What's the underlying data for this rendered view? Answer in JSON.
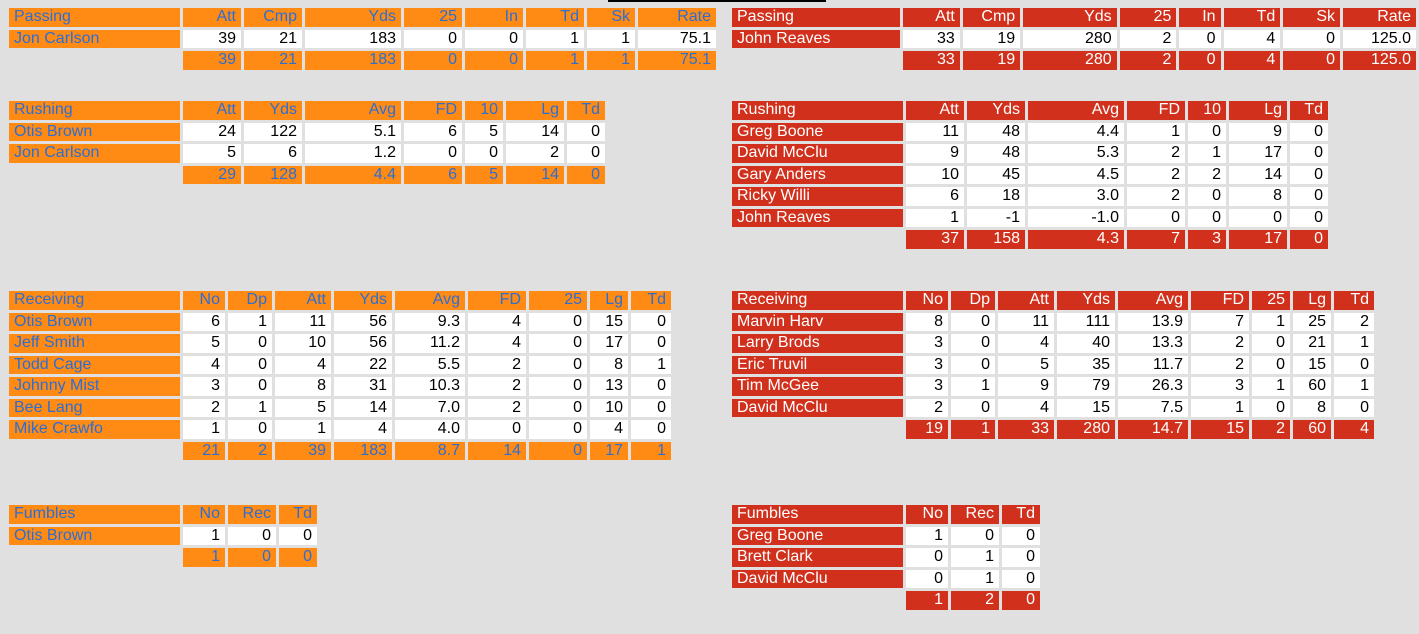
{
  "home": {
    "passing": {
      "title": "Passing",
      "headers": [
        "Att",
        "Cmp",
        "Yds",
        "25",
        "In",
        "Td",
        "Sk",
        "Rate"
      ],
      "rows": [
        {
          "name": "Jon Carlson",
          "values": [
            "39",
            "21",
            "183",
            "0",
            "0",
            "1",
            "1",
            "75.1"
          ]
        }
      ],
      "totals": [
        "39",
        "21",
        "183",
        "0",
        "0",
        "1",
        "1",
        "75.1"
      ]
    },
    "rushing": {
      "title": "Rushing",
      "headers": [
        "Att",
        "Yds",
        "Avg",
        "FD",
        "10",
        "Lg",
        "Td"
      ],
      "rows": [
        {
          "name": "Otis Brown",
          "values": [
            "24",
            "122",
            "5.1",
            "6",
            "5",
            "14",
            "0"
          ]
        },
        {
          "name": "Jon Carlson",
          "values": [
            "5",
            "6",
            "1.2",
            "0",
            "0",
            "2",
            "0"
          ]
        }
      ],
      "totals": [
        "29",
        "128",
        "4.4",
        "6",
        "5",
        "14",
        "0"
      ]
    },
    "receiving": {
      "title": "Receiving",
      "headers": [
        "No",
        "Dp",
        "Att",
        "Yds",
        "Avg",
        "FD",
        "25",
        "Lg",
        "Td"
      ],
      "rows": [
        {
          "name": "Otis Brown",
          "values": [
            "6",
            "1",
            "11",
            "56",
            "9.3",
            "4",
            "0",
            "15",
            "0"
          ]
        },
        {
          "name": "Jeff Smith",
          "values": [
            "5",
            "0",
            "10",
            "56",
            "11.2",
            "4",
            "0",
            "17",
            "0"
          ]
        },
        {
          "name": "Todd Cage",
          "values": [
            "4",
            "0",
            "4",
            "22",
            "5.5",
            "2",
            "0",
            "8",
            "1"
          ]
        },
        {
          "name": "Johnny Mist",
          "values": [
            "3",
            "0",
            "8",
            "31",
            "10.3",
            "2",
            "0",
            "13",
            "0"
          ]
        },
        {
          "name": "Bee Lang",
          "values": [
            "2",
            "1",
            "5",
            "14",
            "7.0",
            "2",
            "0",
            "10",
            "0"
          ]
        },
        {
          "name": "Mike Crawfo",
          "values": [
            "1",
            "0",
            "1",
            "4",
            "4.0",
            "0",
            "0",
            "4",
            "0"
          ]
        }
      ],
      "totals": [
        "21",
        "2",
        "39",
        "183",
        "8.7",
        "14",
        "0",
        "17",
        "1"
      ]
    },
    "fumbles": {
      "title": "Fumbles",
      "headers": [
        "No",
        "Rec",
        "Td"
      ],
      "rows": [
        {
          "name": "Otis Brown",
          "values": [
            "1",
            "0",
            "0"
          ]
        }
      ],
      "totals": [
        "1",
        "0",
        "0"
      ]
    }
  },
  "away": {
    "passing": {
      "title": "Passing",
      "headers": [
        "Att",
        "Cmp",
        "Yds",
        "25",
        "In",
        "Td",
        "Sk",
        "Rate"
      ],
      "rows": [
        {
          "name": "John Reaves",
          "values": [
            "33",
            "19",
            "280",
            "2",
            "0",
            "4",
            "0",
            "125.0"
          ]
        }
      ],
      "totals": [
        "33",
        "19",
        "280",
        "2",
        "0",
        "4",
        "0",
        "125.0"
      ]
    },
    "rushing": {
      "title": "Rushing",
      "headers": [
        "Att",
        "Yds",
        "Avg",
        "FD",
        "10",
        "Lg",
        "Td"
      ],
      "rows": [
        {
          "name": "Greg Boone",
          "values": [
            "11",
            "48",
            "4.4",
            "1",
            "0",
            "9",
            "0"
          ]
        },
        {
          "name": "David McClu",
          "values": [
            "9",
            "48",
            "5.3",
            "2",
            "1",
            "17",
            "0"
          ]
        },
        {
          "name": "Gary Anders",
          "values": [
            "10",
            "45",
            "4.5",
            "2",
            "2",
            "14",
            "0"
          ]
        },
        {
          "name": "Ricky Willi",
          "values": [
            "6",
            "18",
            "3.0",
            "2",
            "0",
            "8",
            "0"
          ]
        },
        {
          "name": "John Reaves",
          "values": [
            "1",
            "-1",
            "-1.0",
            "0",
            "0",
            "0",
            "0"
          ]
        }
      ],
      "totals": [
        "37",
        "158",
        "4.3",
        "7",
        "3",
        "17",
        "0"
      ]
    },
    "receiving": {
      "title": "Receiving",
      "headers": [
        "No",
        "Dp",
        "Att",
        "Yds",
        "Avg",
        "FD",
        "25",
        "Lg",
        "Td"
      ],
      "rows": [
        {
          "name": "Marvin Harv",
          "values": [
            "8",
            "0",
            "11",
            "111",
            "13.9",
            "7",
            "1",
            "25",
            "2"
          ]
        },
        {
          "name": "Larry Brods",
          "values": [
            "3",
            "0",
            "4",
            "40",
            "13.3",
            "2",
            "0",
            "21",
            "1"
          ]
        },
        {
          "name": "Eric Truvil",
          "values": [
            "3",
            "0",
            "5",
            "35",
            "11.7",
            "2",
            "0",
            "15",
            "0"
          ]
        },
        {
          "name": "Tim McGee",
          "values": [
            "3",
            "1",
            "9",
            "79",
            "26.3",
            "3",
            "1",
            "60",
            "1"
          ]
        },
        {
          "name": "David McClu",
          "values": [
            "2",
            "0",
            "4",
            "15",
            "7.5",
            "1",
            "0",
            "8",
            "0"
          ]
        }
      ],
      "totals": [
        "19",
        "1",
        "33",
        "280",
        "14.7",
        "15",
        "2",
        "60",
        "4"
      ]
    },
    "fumbles": {
      "title": "Fumbles",
      "headers": [
        "No",
        "Rec",
        "Td"
      ],
      "rows": [
        {
          "name": "Greg Boone",
          "values": [
            "1",
            "0",
            "0"
          ]
        },
        {
          "name": "Brett Clark",
          "values": [
            "0",
            "1",
            "0"
          ]
        },
        {
          "name": "David McClu",
          "values": [
            "0",
            "1",
            "0"
          ]
        }
      ],
      "totals": [
        "1",
        "2",
        "0"
      ]
    }
  }
}
